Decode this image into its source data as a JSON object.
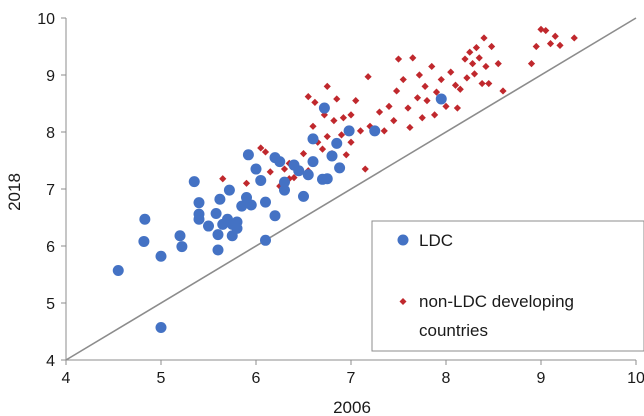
{
  "chart_data": {
    "type": "scatter",
    "title": "",
    "xlabel": "2006",
    "ylabel": "2018",
    "xlim": [
      4,
      10
    ],
    "ylim": [
      4,
      10
    ],
    "xticks": [
      "4",
      "5",
      "6",
      "7",
      "8",
      "9",
      "10"
    ],
    "yticks": [
      "4",
      "5",
      "6",
      "7",
      "8",
      "9",
      "10"
    ],
    "grid": false,
    "reference_line": "y = x",
    "legend_placement": "bottom-right",
    "colors": {
      "LDC": "#4472C4",
      "non-LDC developing countries": "#C0282D",
      "reference_line": "#8c8c8c"
    },
    "legend": [
      {
        "series": "LDC",
        "lines": [
          "LDC"
        ]
      },
      {
        "series": "non-LDC developing countries",
        "lines": [
          "non-LDC developing",
          "countries"
        ]
      }
    ],
    "series": [
      {
        "name": "LDC",
        "marker": "circle",
        "points": [
          [
            4.55,
            5.57
          ],
          [
            4.83,
            6.47
          ],
          [
            4.82,
            6.08
          ],
          [
            5.0,
            5.82
          ],
          [
            5.0,
            4.57
          ],
          [
            5.2,
            6.18
          ],
          [
            5.22,
            5.99
          ],
          [
            5.35,
            7.13
          ],
          [
            5.4,
            6.76
          ],
          [
            5.4,
            6.47
          ],
          [
            5.4,
            6.56
          ],
          [
            5.5,
            6.35
          ],
          [
            5.58,
            6.57
          ],
          [
            5.6,
            5.93
          ],
          [
            5.6,
            6.2
          ],
          [
            5.62,
            6.82
          ],
          [
            5.65,
            6.38
          ],
          [
            5.7,
            6.47
          ],
          [
            5.72,
            6.98
          ],
          [
            5.75,
            6.38
          ],
          [
            5.75,
            6.18
          ],
          [
            5.8,
            6.42
          ],
          [
            5.8,
            6.31
          ],
          [
            5.85,
            6.7
          ],
          [
            5.9,
            6.85
          ],
          [
            5.92,
            7.6
          ],
          [
            5.95,
            6.72
          ],
          [
            6.0,
            7.35
          ],
          [
            6.05,
            7.15
          ],
          [
            6.1,
            6.77
          ],
          [
            6.1,
            6.1
          ],
          [
            6.2,
            6.53
          ],
          [
            6.2,
            7.55
          ],
          [
            6.25,
            7.48
          ],
          [
            6.3,
            7.12
          ],
          [
            6.3,
            6.98
          ],
          [
            6.4,
            7.42
          ],
          [
            6.45,
            7.32
          ],
          [
            6.5,
            6.87
          ],
          [
            6.55,
            7.25
          ],
          [
            6.6,
            7.88
          ],
          [
            6.6,
            7.48
          ],
          [
            6.7,
            7.17
          ],
          [
            6.72,
            8.42
          ],
          [
            6.75,
            7.18
          ],
          [
            6.8,
            7.58
          ],
          [
            6.85,
            7.8
          ],
          [
            6.88,
            7.37
          ],
          [
            6.98,
            8.02
          ],
          [
            7.25,
            8.02
          ],
          [
            7.95,
            8.58
          ]
        ]
      },
      {
        "name": "non-LDC developing countries",
        "marker": "diamond",
        "points": [
          [
            5.65,
            7.18
          ],
          [
            5.9,
            7.1
          ],
          [
            6.05,
            7.72
          ],
          [
            6.1,
            7.65
          ],
          [
            6.15,
            7.3
          ],
          [
            6.2,
            6.55
          ],
          [
            6.25,
            7.05
          ],
          [
            6.3,
            7.35
          ],
          [
            6.35,
            7.18
          ],
          [
            6.35,
            7.45
          ],
          [
            6.4,
            7.2
          ],
          [
            6.5,
            7.62
          ],
          [
            6.55,
            7.32
          ],
          [
            6.55,
            8.62
          ],
          [
            6.6,
            8.1
          ],
          [
            6.62,
            8.52
          ],
          [
            6.65,
            7.82
          ],
          [
            6.7,
            7.7
          ],
          [
            6.72,
            8.3
          ],
          [
            6.75,
            7.92
          ],
          [
            6.75,
            8.8
          ],
          [
            6.8,
            7.62
          ],
          [
            6.82,
            8.2
          ],
          [
            6.85,
            8.58
          ],
          [
            6.9,
            7.95
          ],
          [
            6.92,
            8.25
          ],
          [
            6.95,
            7.6
          ],
          [
            7.0,
            7.82
          ],
          [
            7.0,
            8.3
          ],
          [
            7.05,
            8.55
          ],
          [
            7.1,
            8.02
          ],
          [
            7.15,
            7.35
          ],
          [
            7.18,
            8.97
          ],
          [
            7.2,
            8.1
          ],
          [
            7.3,
            8.35
          ],
          [
            7.35,
            8.02
          ],
          [
            7.4,
            8.45
          ],
          [
            7.45,
            8.2
          ],
          [
            7.48,
            8.72
          ],
          [
            7.5,
            9.28
          ],
          [
            7.55,
            8.92
          ],
          [
            7.6,
            8.42
          ],
          [
            7.62,
            8.08
          ],
          [
            7.65,
            9.3
          ],
          [
            7.7,
            8.6
          ],
          [
            7.72,
            9.0
          ],
          [
            7.75,
            8.25
          ],
          [
            7.78,
            8.8
          ],
          [
            7.8,
            8.55
          ],
          [
            7.85,
            9.15
          ],
          [
            7.88,
            8.3
          ],
          [
            7.9,
            8.7
          ],
          [
            7.95,
            8.92
          ],
          [
            8.0,
            8.45
          ],
          [
            8.05,
            9.05
          ],
          [
            8.1,
            8.82
          ],
          [
            8.12,
            8.42
          ],
          [
            8.15,
            8.75
          ],
          [
            8.2,
            9.28
          ],
          [
            8.22,
            8.95
          ],
          [
            8.25,
            9.4
          ],
          [
            8.28,
            9.2
          ],
          [
            8.3,
            9.02
          ],
          [
            8.32,
            9.48
          ],
          [
            8.35,
            9.3
          ],
          [
            8.38,
            8.85
          ],
          [
            8.4,
            9.65
          ],
          [
            8.42,
            9.15
          ],
          [
            8.45,
            8.85
          ],
          [
            8.48,
            9.5
          ],
          [
            8.55,
            9.2
          ],
          [
            8.6,
            8.72
          ],
          [
            8.9,
            9.2
          ],
          [
            8.95,
            9.5
          ],
          [
            9.0,
            9.8
          ],
          [
            9.05,
            9.78
          ],
          [
            9.1,
            9.55
          ],
          [
            9.15,
            9.68
          ],
          [
            9.2,
            9.52
          ],
          [
            9.35,
            9.65
          ]
        ]
      }
    ]
  }
}
